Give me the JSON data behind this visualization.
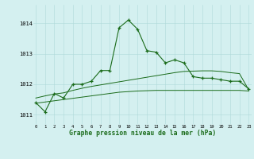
{
  "hours": [
    0,
    1,
    2,
    3,
    4,
    5,
    6,
    7,
    8,
    9,
    10,
    11,
    12,
    13,
    14,
    15,
    16,
    17,
    18,
    19,
    20,
    21,
    22,
    23
  ],
  "pressure_main": [
    1011.4,
    1011.1,
    1011.7,
    1011.55,
    1012.0,
    1012.0,
    1012.1,
    1012.45,
    1012.45,
    1013.85,
    1014.1,
    1013.8,
    1013.1,
    1013.05,
    1012.7,
    1012.8,
    1012.7,
    1012.25,
    1012.2,
    1012.2,
    1012.15,
    1012.1,
    1012.1,
    1011.85
  ],
  "pressure_line2": [
    1011.55,
    1011.62,
    1011.68,
    1011.72,
    1011.8,
    1011.87,
    1011.93,
    1011.98,
    1012.03,
    1012.08,
    1012.13,
    1012.18,
    1012.23,
    1012.28,
    1012.33,
    1012.38,
    1012.42,
    1012.43,
    1012.44,
    1012.44,
    1012.42,
    1012.38,
    1012.35,
    1011.82
  ],
  "pressure_line3": [
    1011.38,
    1011.42,
    1011.46,
    1011.5,
    1011.54,
    1011.58,
    1011.62,
    1011.66,
    1011.7,
    1011.74,
    1011.76,
    1011.78,
    1011.79,
    1011.8,
    1011.8,
    1011.8,
    1011.8,
    1011.8,
    1011.8,
    1011.8,
    1011.8,
    1011.8,
    1011.8,
    1011.78
  ],
  "ylim": [
    1010.7,
    1014.6
  ],
  "yticks": [
    1011,
    1012,
    1013,
    1014
  ],
  "xticks": [
    0,
    1,
    2,
    3,
    4,
    5,
    6,
    7,
    8,
    9,
    10,
    11,
    12,
    13,
    14,
    15,
    16,
    17,
    18,
    19,
    20,
    21,
    22,
    23
  ],
  "line_color": "#1a6b1a",
  "bg_color": "#d4f0f0",
  "grid_color": "#b0dada",
  "xlabel": "Graphe pression niveau de la mer (hPa)",
  "marker": "+"
}
